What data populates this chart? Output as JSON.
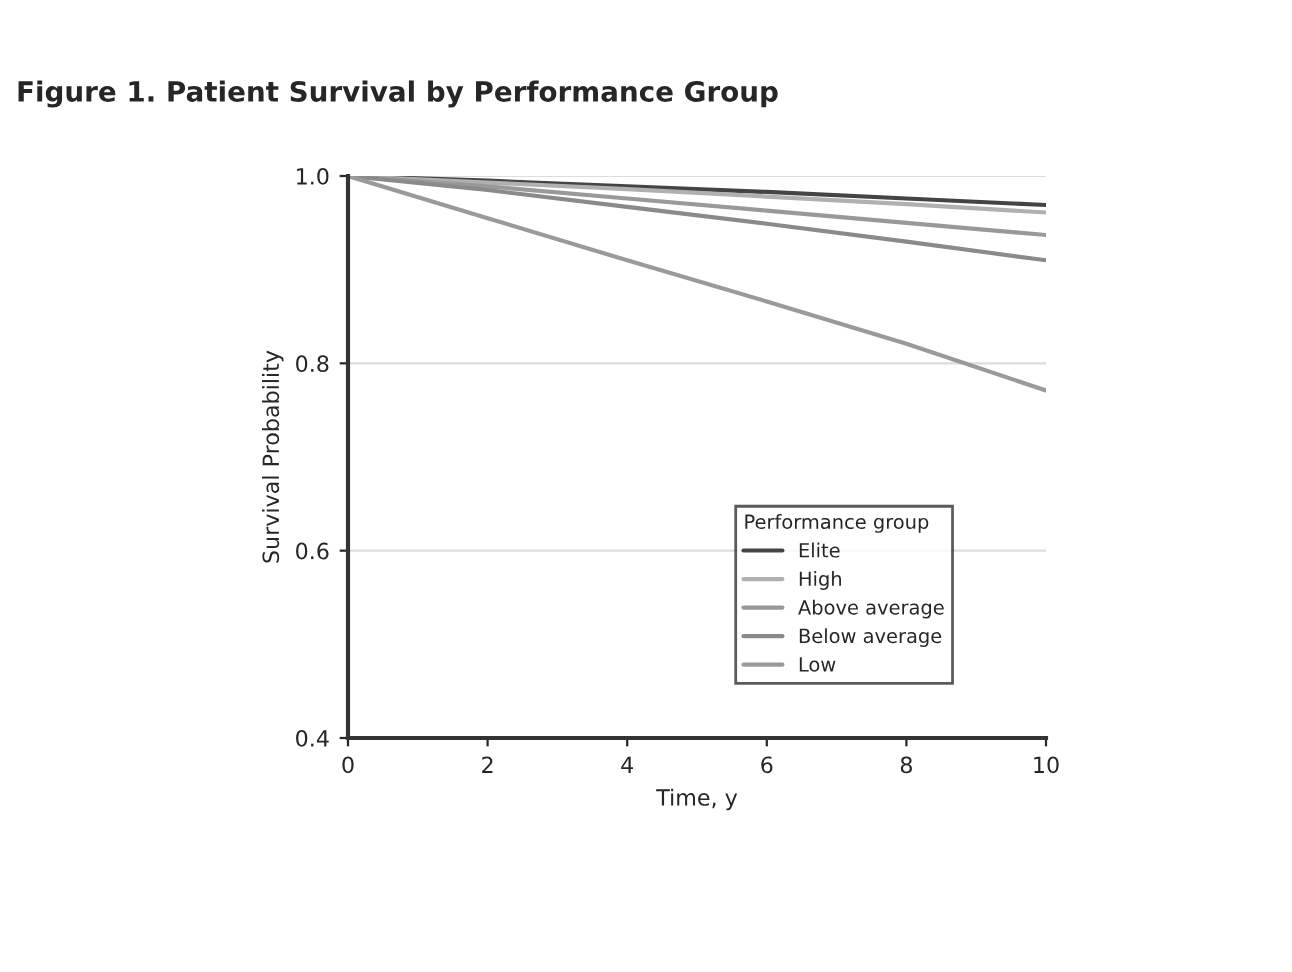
{
  "chart_data": {
    "type": "line",
    "title": "Figure 1. Patient Survival by Performance Group",
    "xlabel": "Time, y",
    "ylabel": "Survival Probability",
    "legend_title": "Performance group",
    "x": [
      0,
      2,
      4,
      6,
      8,
      10
    ],
    "series": [
      {
        "name": "Elite",
        "color": "#444444",
        "values": [
          1.0,
          0.995,
          0.989,
          0.983,
          0.976,
          0.969
        ]
      },
      {
        "name": "High",
        "color": "#b0b0b0",
        "values": [
          1.0,
          0.993,
          0.986,
          0.978,
          0.97,
          0.961
        ]
      },
      {
        "name": "Above average",
        "color": "#999999",
        "values": [
          1.0,
          0.989,
          0.976,
          0.963,
          0.95,
          0.937
        ]
      },
      {
        "name": "Below average",
        "color": "#8a8a8a",
        "values": [
          1.0,
          0.985,
          0.967,
          0.949,
          0.93,
          0.91
        ]
      },
      {
        "name": "Low",
        "color": "#9a9a9a",
        "values": [
          1.0,
          0.955,
          0.91,
          0.866,
          0.821,
          0.771
        ]
      }
    ],
    "xlim": [
      0,
      10
    ],
    "xticks": [
      0,
      2,
      4,
      6,
      8,
      10
    ],
    "ylim": [
      0.4,
      1.0
    ],
    "yticks": [
      0.4,
      0.6,
      0.8,
      {
        "value": 1.0,
        "label": "1.0"
      }
    ],
    "grid": "y",
    "legend": "bottom right",
    "line_style": "solid",
    "marker": "none"
  }
}
